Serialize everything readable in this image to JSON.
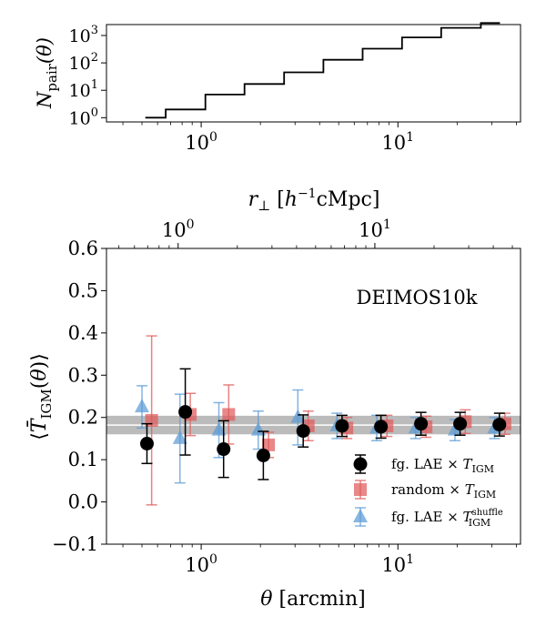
{
  "chart_data": [
    {
      "type": "step",
      "panel": "top",
      "title": "",
      "ylabel_main": "N",
      "ylabel_sub": "pair",
      "ylabel_arg": "(θ)",
      "xscale": "log",
      "yscale": "log",
      "xlim": [
        0.33,
        42
      ],
      "ylim": [
        0.7,
        2500
      ],
      "xticks": [
        {
          "value": 1,
          "mantissa": "10",
          "exp": "0"
        },
        {
          "value": 10,
          "mantissa": "10",
          "exp": "1"
        }
      ],
      "yticks": [
        {
          "value": 1,
          "mantissa": "10",
          "exp": "0"
        },
        {
          "value": 10,
          "mantissa": "10",
          "exp": "1"
        },
        {
          "value": 100,
          "mantissa": "10",
          "exp": "2"
        },
        {
          "value": 1000,
          "mantissa": "10",
          "exp": "3"
        }
      ],
      "bin_edges": [
        0.52,
        0.66,
        1.05,
        1.66,
        2.64,
        4.18,
        6.62,
        10.5,
        16.6,
        26.4,
        33.0
      ],
      "counts": [
        1,
        2,
        7,
        17,
        45,
        130,
        330,
        850,
        1900,
        2850
      ]
    },
    {
      "type": "errorbar",
      "panel": "bottom",
      "annotation": "DEIMOS10k",
      "xlabel": "θ [arcmin]",
      "top_xlabel": "r⊥ [h⁻¹cMpc]",
      "ylabel": "⟨T̄_IGM(θ)⟩",
      "xscale": "log",
      "xlim": [
        0.33,
        42
      ],
      "ylim": [
        -0.1,
        0.6
      ],
      "yticks": [
        -0.1,
        0.0,
        0.1,
        0.2,
        0.3,
        0.4,
        0.5,
        0.6
      ],
      "ytick_labels": [
        "−0.1",
        "0.0",
        "0.1",
        "0.2",
        "0.3",
        "0.4",
        "0.5",
        "0.6"
      ],
      "xticks": [
        {
          "value": 1,
          "mantissa": "10",
          "exp": "0"
        },
        {
          "value": 10,
          "mantissa": "10",
          "exp": "1"
        }
      ],
      "top_axis_factor": 1.31,
      "top_xticks": [
        {
          "value": 1,
          "mantissa": "10",
          "exp": "0"
        },
        {
          "value": 10,
          "mantissa": "10",
          "exp": "1"
        }
      ],
      "mean_band": {
        "center": 0.182,
        "halfwidth": 0.022,
        "color": "#bbbbbb"
      },
      "series": [
        {
          "name": "random × T_IGM",
          "marker": "square",
          "color": "#e05a5a",
          "x": [
            0.56,
            0.88,
            1.38,
            2.2,
            3.5,
            5.5,
            8.8,
            13.9,
            22.0,
            35.0
          ],
          "y": [
            0.193,
            0.207,
            0.207,
            0.135,
            0.18,
            0.175,
            0.18,
            0.178,
            0.19,
            0.185
          ],
          "yerr": [
            0.2,
            0.05,
            0.07,
            0.03,
            0.035,
            0.025,
            0.025,
            0.025,
            0.028,
            0.025
          ]
        },
        {
          "name": "fg. LAE × T_IGM^shuffle",
          "marker": "triangle",
          "color": "#5b9bd5",
          "x": [
            0.5,
            0.78,
            1.23,
            1.95,
            3.1,
            4.9,
            7.8,
            12.3,
            19.5,
            31.0
          ],
          "y": [
            0.225,
            0.15,
            0.17,
            0.17,
            0.2,
            0.18,
            0.175,
            0.175,
            0.17,
            0.175
          ],
          "yerr": [
            0.05,
            0.105,
            0.065,
            0.045,
            0.065,
            0.03,
            0.03,
            0.025,
            0.025,
            0.025
          ]
        },
        {
          "name": "fg. LAE × T_IGM",
          "marker": "circle",
          "color": "#000000",
          "x": [
            0.53,
            0.83,
            1.3,
            2.07,
            3.3,
            5.2,
            8.2,
            13.1,
            20.7,
            32.8
          ],
          "y": [
            0.138,
            0.213,
            0.125,
            0.11,
            0.168,
            0.18,
            0.178,
            0.185,
            0.185,
            0.183
          ],
          "yerr": [
            0.047,
            0.102,
            0.067,
            0.057,
            0.038,
            0.025,
            0.027,
            0.027,
            0.027,
            0.027
          ]
        }
      ],
      "legend": [
        {
          "marker": "circle",
          "color": "#000000",
          "text": "fg. LAE × T",
          "sub": "IGM",
          "sup": ""
        },
        {
          "marker": "square",
          "color": "#e05a5a",
          "text": "random × T",
          "sub": "IGM",
          "sup": ""
        },
        {
          "marker": "triangle",
          "color": "#5b9bd5",
          "text": "fg. LAE × T",
          "sub": "IGM",
          "sup": "shuffle"
        }
      ]
    }
  ]
}
